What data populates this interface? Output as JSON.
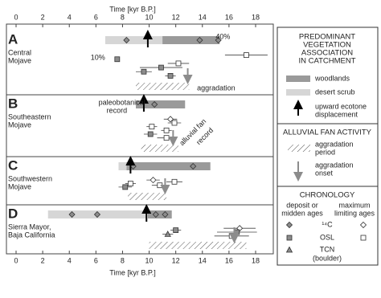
{
  "chart_data": {
    "type": "timeline",
    "xlabel": "Time [kyr B.P.]",
    "xlim": [
      0,
      18
    ],
    "xticks": [
      0,
      2,
      4,
      6,
      8,
      10,
      12,
      14,
      16,
      18
    ],
    "colors": {
      "woodlands": "#9a9a9a",
      "desert_scrub": "#d6d6d6",
      "marker": "#8c8c8c",
      "onset": "#8c8c8c"
    },
    "panels": [
      {
        "label": "A",
        "region": [
          "Central",
          "Mojave"
        ],
        "woodlands": [
          11,
          15.3
        ],
        "desert_scrub": [
          6.7,
          11
        ],
        "ecotone": 9.9,
        "bar_c14": [
          8.3,
          13.8,
          15.2
        ],
        "points": [
          {
            "x": 17.3,
            "err": 1.6,
            "marker": "osl_max"
          },
          {
            "x": 7.6,
            "err": 0,
            "marker": "osl"
          },
          {
            "x": 12.2,
            "err": 0.8,
            "marker": "osl_max"
          },
          {
            "x": 10.9,
            "err": 1.6,
            "marker": "osl"
          },
          {
            "x": 9.6,
            "err": 0.6,
            "marker": "osl"
          },
          {
            "x": 11.6,
            "err": 0.4,
            "marker": "osl"
          }
        ],
        "aggradation": [
          9,
          13
        ],
        "onset": 12.9,
        "annotations": [
          "40%",
          "10%",
          "aggradation"
        ]
      },
      {
        "label": "B",
        "region": [
          "Southeastern",
          "Mojave"
        ],
        "woodlands": [
          9,
          12.7
        ],
        "ecotone": 9.6,
        "bar_c14": [
          10.4
        ],
        "points": [
          {
            "x": 11.6,
            "err": 0.5,
            "marker": "c14_max"
          },
          {
            "x": 11.9,
            "err": 0.5,
            "marker": "osl_max"
          },
          {
            "x": 10.2,
            "err": 0.4,
            "marker": "osl_max"
          },
          {
            "x": 11.3,
            "err": 0.4,
            "marker": "osl_max"
          },
          {
            "x": 10.1,
            "err": 0.5,
            "marker": "osl"
          },
          {
            "x": 11.3,
            "err": 0.7,
            "marker": "osl_max"
          }
        ],
        "aggradation": [
          9.4,
          12.2
        ],
        "onset": 11.8,
        "annotations": [
          "paleobotanical",
          "record",
          "alluvial fan",
          "record"
        ]
      },
      {
        "label": "C",
        "region": [
          "Southwestern",
          "Mojave"
        ],
        "woodlands": [
          8.3,
          14.6
        ],
        "desert_scrub": [
          7.7,
          8.3
        ],
        "ecotone": 8.6,
        "bar_c14": [
          8.8,
          13.3
        ],
        "points": [
          {
            "x": 10.3,
            "err": 0.5,
            "marker": "c14_max"
          },
          {
            "x": 11.9,
            "err": 0.6,
            "marker": "osl_max"
          },
          {
            "x": 8.6,
            "err": 0.4,
            "marker": "osl_max"
          },
          {
            "x": 10.8,
            "err": 0.6,
            "marker": "osl_max"
          },
          {
            "x": 8.2,
            "err": 0.5,
            "marker": "osl"
          }
        ],
        "aggradation": [
          8.4,
          11.3
        ],
        "onset": 11.2
      },
      {
        "label": "D",
        "region": [
          "Sierra Mayor,",
          "Baja California"
        ],
        "woodlands": [
          9.9,
          11.7
        ],
        "desert_scrub": [
          2.4,
          9.8
        ],
        "ecotone": 9.8,
        "bar_c14": [
          4.2,
          6.1,
          10.5,
          11.2
        ],
        "points": [
          {
            "x": 16.8,
            "err": 1.2,
            "marker": "c14_max"
          },
          {
            "x": 12,
            "err": 0.4,
            "marker": "osl"
          },
          {
            "x": 16.6,
            "err": 1.5,
            "marker": "osl"
          },
          {
            "x": 11.4,
            "err": 0.4,
            "marker": "tcn"
          },
          {
            "x": 16.2,
            "err": 1.3,
            "marker": "osl_max"
          }
        ],
        "aggradation": [
          10,
          17.3
        ],
        "onset": 16.4
      }
    ],
    "legend": {
      "vegetation_title": [
        "PREDOMINANT",
        "VEGETATION",
        "ASSOCIATION",
        "IN CATCHMENT"
      ],
      "woodlands": "woodlands",
      "desert_scrub": "desert scrub",
      "ecotone": [
        "upward ecotone",
        "displacement"
      ],
      "fan_title": "ALLUVIAL FAN ACTIVITY",
      "aggradation_period": [
        "aggradation",
        "period"
      ],
      "aggradation_onset": [
        "aggradation",
        "onset"
      ],
      "chronology_title": "CHRONOLOGY",
      "deposit": [
        "deposit or",
        "midden ages"
      ],
      "maximum": [
        "maximum",
        "limiting ages"
      ],
      "c14": "¹⁴C",
      "osl": "OSL",
      "tcn": "TCN",
      "tcn_note": "(boulder)"
    }
  }
}
